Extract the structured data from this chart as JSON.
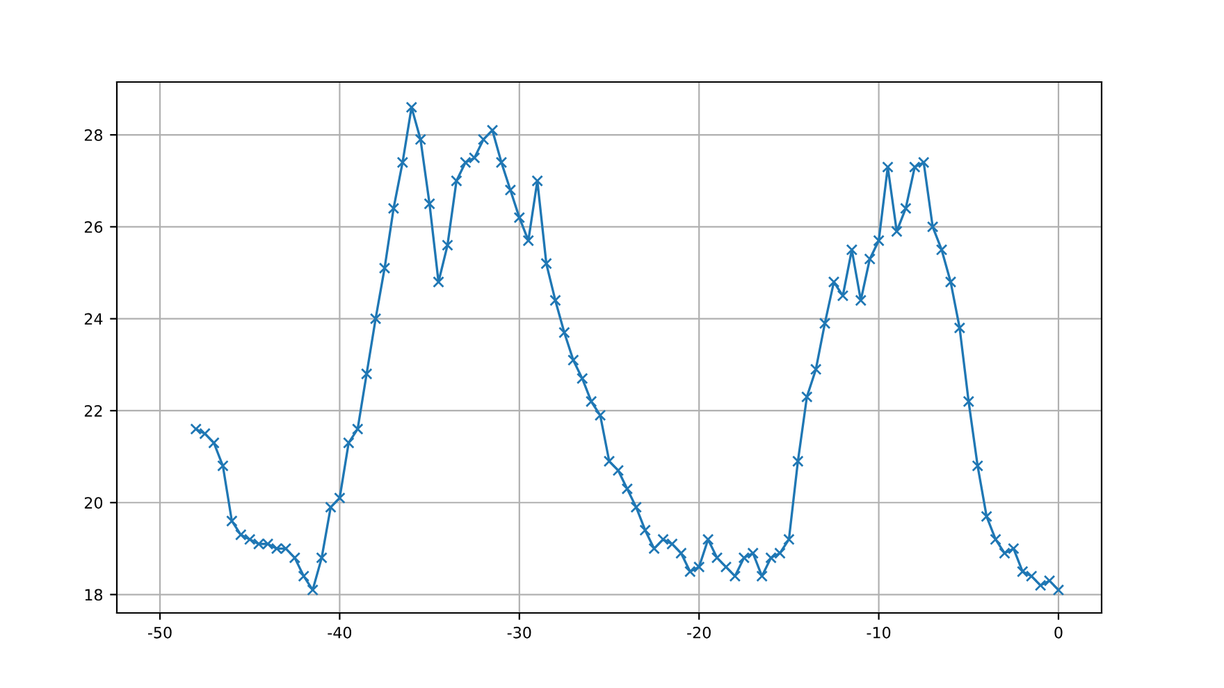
{
  "chart_data": {
    "type": "line",
    "x": [
      -48,
      -47.5,
      -47,
      -46.5,
      -46,
      -45.5,
      -45,
      -44.5,
      -44,
      -43.5,
      -43,
      -42.5,
      -42,
      -41.5,
      -41,
      -40.5,
      -40,
      -39.5,
      -39,
      -38.5,
      -38,
      -37.5,
      -37,
      -36.5,
      -36,
      -35.5,
      -35,
      -34.5,
      -34,
      -33.5,
      -33,
      -32.5,
      -32,
      -31.5,
      -31,
      -30.5,
      -30,
      -29.5,
      -29,
      -28.5,
      -28,
      -27.5,
      -27,
      -26.5,
      -26,
      -25.5,
      -25,
      -24.5,
      -24,
      -23.5,
      -23,
      -22.5,
      -22,
      -21.5,
      -21,
      -20.5,
      -20,
      -19.5,
      -19,
      -18.5,
      -18,
      -17.5,
      -17,
      -16.5,
      -16,
      -15.5,
      -15,
      -14.5,
      -14,
      -13.5,
      -13,
      -12.5,
      -12,
      -11.5,
      -11,
      -10.5,
      -10,
      -9.5,
      -9,
      -8.5,
      -8,
      -7.5,
      -7,
      -6.5,
      -6,
      -5.5,
      -5,
      -4.5,
      -4,
      -3.5,
      -3,
      -2.5,
      -2,
      -1.5,
      -1,
      -0.5,
      0
    ],
    "series": [
      {
        "color": "#1f77b4",
        "values": [
          21.6,
          21.5,
          21.3,
          20.8,
          19.6,
          19.3,
          19.2,
          19.1,
          19.1,
          19.0,
          19.0,
          18.8,
          18.4,
          18.1,
          18.8,
          19.9,
          20.1,
          21.3,
          21.6,
          22.8,
          24.0,
          25.1,
          26.4,
          27.4,
          28.6,
          27.9,
          26.5,
          24.8,
          25.6,
          27.0,
          27.4,
          27.5,
          27.9,
          28.1,
          27.4,
          26.8,
          26.2,
          25.7,
          27.0,
          25.2,
          24.4,
          23.7,
          23.1,
          22.7,
          22.2,
          21.9,
          20.9,
          20.7,
          20.3,
          19.9,
          19.4,
          19.0,
          19.2,
          19.1,
          18.9,
          18.5,
          18.6,
          19.2,
          18.8,
          18.6,
          18.4,
          18.8,
          18.9,
          18.4,
          18.8,
          18.9,
          19.2,
          20.9,
          22.3,
          22.9,
          23.9,
          24.8,
          24.5,
          25.5,
          24.4,
          25.3,
          25.7,
          27.3,
          25.9,
          26.4,
          27.3,
          27.4,
          26.0,
          25.5,
          24.8,
          23.8,
          22.2,
          20.8,
          19.7,
          19.2,
          18.9,
          19.0,
          18.5,
          18.4,
          18.2,
          18.3,
          18.1
        ]
      }
    ],
    "xlim": [
      -52.4,
      2.4
    ],
    "xticks": [
      -50,
      -40,
      -30,
      -20,
      -10,
      0
    ],
    "ylim": [
      17.6,
      29.15
    ],
    "yticks": [
      18,
      20,
      22,
      24,
      26,
      28
    ],
    "grid": true,
    "marker": "cross",
    "line_style": "solid"
  }
}
